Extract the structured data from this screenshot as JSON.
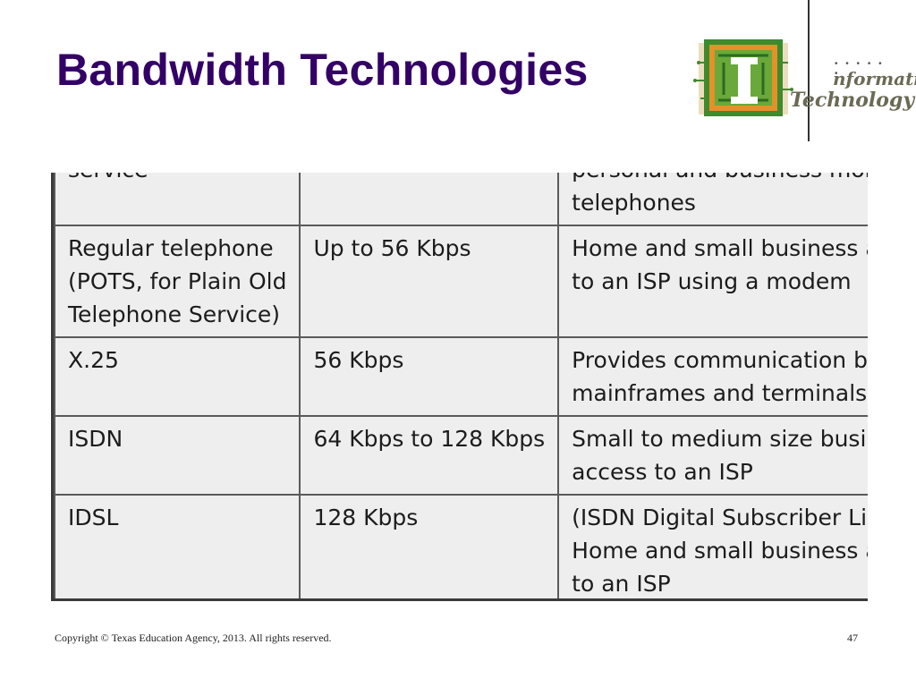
{
  "slide": {
    "title": "Bandwidth Technologies",
    "logo": {
      "line1": "nformation",
      "line2": "Technology"
    }
  },
  "table": {
    "rows": [
      {
        "c1": [
          "service"
        ],
        "c2": [],
        "c3": [
          "personal and business mobile",
          "telephones"
        ]
      },
      {
        "c1": [
          "Regular telephone",
          "(POTS, for Plain Old",
          "Telephone Service)"
        ],
        "c2": [
          "Up to 56 Kbps"
        ],
        "c3": [
          "Home and small business access",
          "to an ISP using a modem"
        ]
      },
      {
        "c1": [
          "X.25"
        ],
        "c2": [
          "56 Kbps"
        ],
        "c3": [
          "Provides communication between",
          "mainframes and terminals"
        ]
      },
      {
        "c1": [
          "ISDN"
        ],
        "c2": [
          "64 Kbps to 128 Kbps"
        ],
        "c3": [
          "Small to medium size business",
          "access to an ISP"
        ]
      },
      {
        "c1": [
          "IDSL"
        ],
        "c2": [
          "128 Kbps"
        ],
        "c3": [
          "(ISDN Digital Subscriber Line)",
          "Home and small business access",
          "to an ISP"
        ]
      }
    ]
  },
  "footer": {
    "copyright": "Copyright © Texas Education Agency, 2013. All rights reserved.",
    "page": "47"
  },
  "colors": {
    "title": "#330066",
    "logo_green": "#4a8a2a",
    "logo_orange": "#e08a20",
    "table_bg": "#eeeeee"
  }
}
